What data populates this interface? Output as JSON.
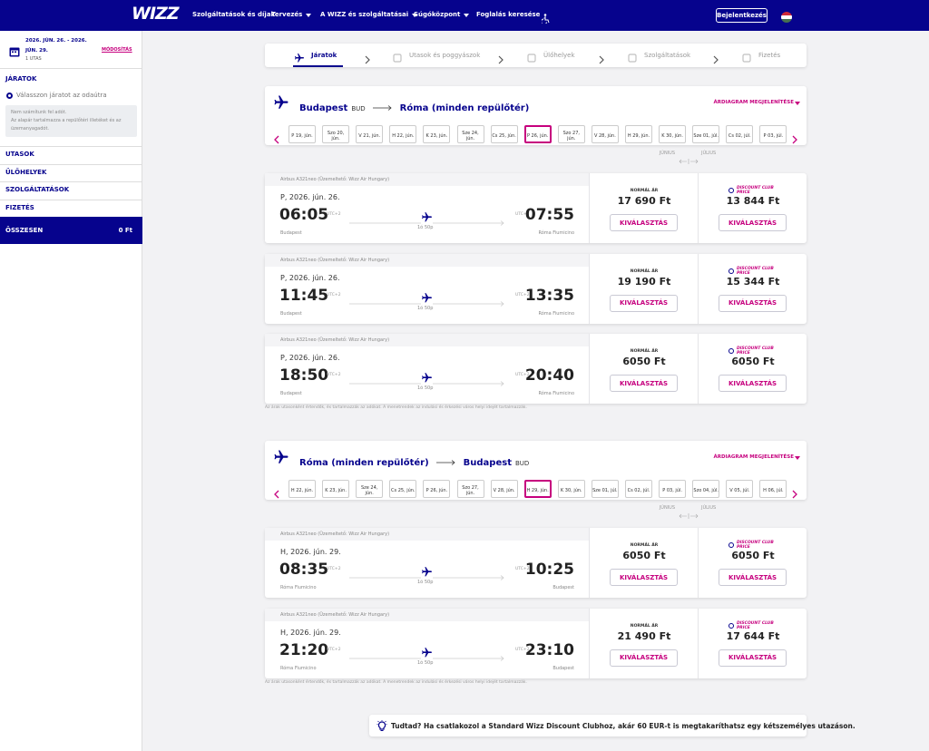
{
  "header": {
    "logo": "WIZZ",
    "nav": [
      {
        "label": "Szolgáltatások és díjak",
        "menu": false
      },
      {
        "label": "Tervezés",
        "menu": true
      },
      {
        "label": "A WIZZ és szolgáltatásai",
        "menu": true
      },
      {
        "label": "Súgóközpont",
        "menu": true
      },
      {
        "label": "Foglalás keresése",
        "menu": false
      }
    ],
    "login": "Bejelentkezés"
  },
  "sidebar": {
    "dates": "2026. JÚN. 26. - 2026. JÚN. 29.",
    "passengers": "1 UTAS",
    "modify": "MÓDOSÍTÁS",
    "flights_title": "JÁRATOK",
    "choose": "Válasszon járatot az odaútra",
    "note": [
      "Nem számítunk fel adót.",
      "Az alapár tartalmazza a repülőtéri illetéket és az üzemanyagadót."
    ],
    "sections": [
      "UTASOK",
      "ÜLŐHELYEK",
      "SZOLGÁLTATÁSOK",
      "FIZETÉS"
    ],
    "total_label": "ÖSSZESEN",
    "total_value": "0 Ft"
  },
  "steps": [
    "Járatok",
    "Utasok és poggyászok",
    "Ülőhelyek",
    "Szolgáltatások",
    "Fizetés"
  ],
  "labels": {
    "price_chart": "ÁRDIAGRAM MEGJELENÍTÉSE",
    "months": [
      "JÚNIUS",
      "JÚLIUS"
    ],
    "normal": "NORMÁL ÁR",
    "club": "DISCOUNT CLUB PRICE",
    "select": "KIVÁLASZTÁS",
    "tz": "UTC+2",
    "duration": "1ó 50p",
    "aircraft": "Airbus A321neo (Üzemeltető: Wizz Air Hungary)",
    "footnote": "Az árak utasonként értendők, és tartalmazzák az adókat. A menetrendek az indulási és érkezési város helyi idejét tartalmazzák."
  },
  "legs": [
    {
      "from": "Budapest",
      "from_code": "BUD",
      "to": "Róma (minden repülőtér)",
      "to_code": "",
      "dates": [
        "P 19, jún.",
        "Szo 20, jún.",
        "V 21, jún.",
        "H 22, jún.",
        "K 23, jún.",
        "Sze 24, jún.",
        "Cs 25, jún.",
        "P 26, jún.",
        "Szo 27, jún.",
        "V 28, jún.",
        "H 29, jún.",
        "K 30, jún.",
        "Sze 01, júl.",
        "Cs 02, júl.",
        "P 03, júl."
      ],
      "selected": 7,
      "flights": [
        {
          "date": "P, 2026. jún. 26.",
          "dep": "06:05",
          "arr": "07:55",
          "dep_airport": "Budapest",
          "arr_airport": "Róma Fiumicino",
          "normal": "17 690 Ft",
          "club": "13 844 Ft"
        },
        {
          "date": "P, 2026. jún. 26.",
          "dep": "11:45",
          "arr": "13:35",
          "dep_airport": "Budapest",
          "arr_airport": "Róma Fiumicino",
          "normal": "19 190 Ft",
          "club": "15 344 Ft"
        },
        {
          "date": "P, 2026. jún. 26.",
          "dep": "18:50",
          "arr": "20:40",
          "dep_airport": "Budapest",
          "arr_airport": "Róma Fiumicino",
          "normal": "6050 Ft",
          "club": "6050 Ft"
        }
      ]
    },
    {
      "from": "Róma (minden repülőtér)",
      "from_code": "",
      "to": "Budapest",
      "to_code": "BUD",
      "dates": [
        "H 22, jún.",
        "K 23, jún.",
        "Sze 24, jún.",
        "Cs 25, jún.",
        "P 26, jún.",
        "Szo 27, jún.",
        "V 28, jún.",
        "H 29, jún.",
        "K 30, jún.",
        "Sze 01, júl.",
        "Cs 02, júl.",
        "P 03, júl.",
        "Szo 04, júl.",
        "V 05, júl.",
        "H 06, júl."
      ],
      "selected": 7,
      "flights": [
        {
          "date": "H, 2026. jún. 29.",
          "dep": "08:35",
          "arr": "10:25",
          "dep_airport": "Róma Fiumicino",
          "arr_airport": "Budapest",
          "normal": "6050 Ft",
          "club": "6050 Ft"
        },
        {
          "date": "H, 2026. jún. 29.",
          "dep": "21:20",
          "arr": "23:10",
          "dep_airport": "Róma Fiumicino",
          "arr_airport": "Budapest",
          "normal": "21 490 Ft",
          "club": "17 644 Ft"
        }
      ]
    }
  ],
  "tip": "Tudtad? Ha csatlakozol a Standard Wizz Discount Clubhoz, akár 60 EUR-t is megtakaríthatsz egy kétszemélyes utazáson."
}
